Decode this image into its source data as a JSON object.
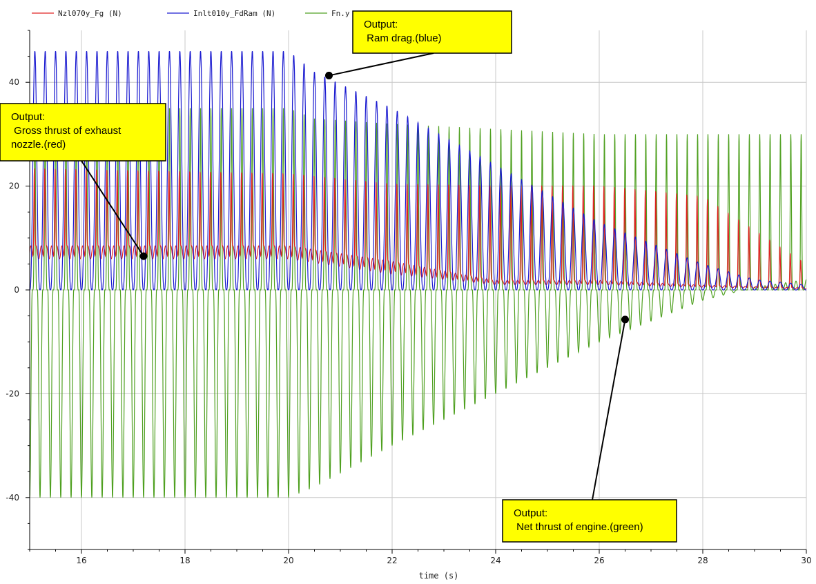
{
  "chart_data": {
    "type": "line",
    "xlabel": "time (s)",
    "ylabel": "",
    "xlim": [
      15,
      30
    ],
    "ylim": [
      -50,
      50
    ],
    "x_ticks": [
      16,
      18,
      20,
      22,
      24,
      26,
      28,
      30
    ],
    "y_ticks": [
      -40,
      -20,
      0,
      20,
      40
    ],
    "grid": true,
    "legend_position": "top-left",
    "oscillation_period_s": 0.2,
    "series": [
      {
        "name": "Nzl070y_Fg (N)",
        "color": "#e02020",
        "envelope": {
          "t": [
            15,
            20,
            22,
            24,
            26,
            28,
            30
          ],
          "max": [
            23,
            22,
            20,
            20,
            20,
            18,
            5
          ],
          "min": [
            6,
            6,
            3,
            1,
            1,
            0.5,
            0.2
          ]
        }
      },
      {
        "name": "Inlt010y_FdRam (N)",
        "color": "#1a1ad0",
        "envelope": {
          "t": [
            15,
            20,
            20.5,
            22,
            24,
            26,
            28,
            29,
            30
          ],
          "max": [
            46,
            46,
            42,
            35,
            24,
            13,
            5,
            2,
            1
          ],
          "min": [
            0,
            0,
            0,
            0,
            0,
            0,
            0,
            0,
            0
          ]
        }
      },
      {
        "name": "Fn.y",
        "color": "#4fa020",
        "envelope": {
          "t": [
            15,
            20,
            20.5,
            22,
            24,
            26,
            28,
            29,
            30
          ],
          "max": [
            35,
            35,
            33,
            32,
            31,
            30,
            30,
            30,
            30
          ],
          "min": [
            -40,
            -40,
            -38,
            -30,
            -20,
            -10,
            -2,
            0.5,
            2
          ]
        }
      }
    ],
    "annotations": [
      {
        "name": "ram-drag",
        "lines": [
          "Output:",
          " Ram drag.(blue)"
        ],
        "target": {
          "x": 20.78,
          "y": 41.3
        }
      },
      {
        "name": "gross-thrust",
        "lines": [
          "Output:",
          " Gross thrust of exhaust",
          "nozzle.(red)"
        ],
        "target": {
          "x": 17.2,
          "y": 6.5
        }
      },
      {
        "name": "net-thrust",
        "lines": [
          "Output:",
          " Net thrust of engine.(green)"
        ],
        "target": {
          "x": 26.5,
          "y": -5.7
        }
      }
    ]
  },
  "colors": {
    "grid": "#c8c8c8",
    "axis": "#000000",
    "annotation_fill": "#ffff00",
    "annotation_border": "#000000"
  }
}
